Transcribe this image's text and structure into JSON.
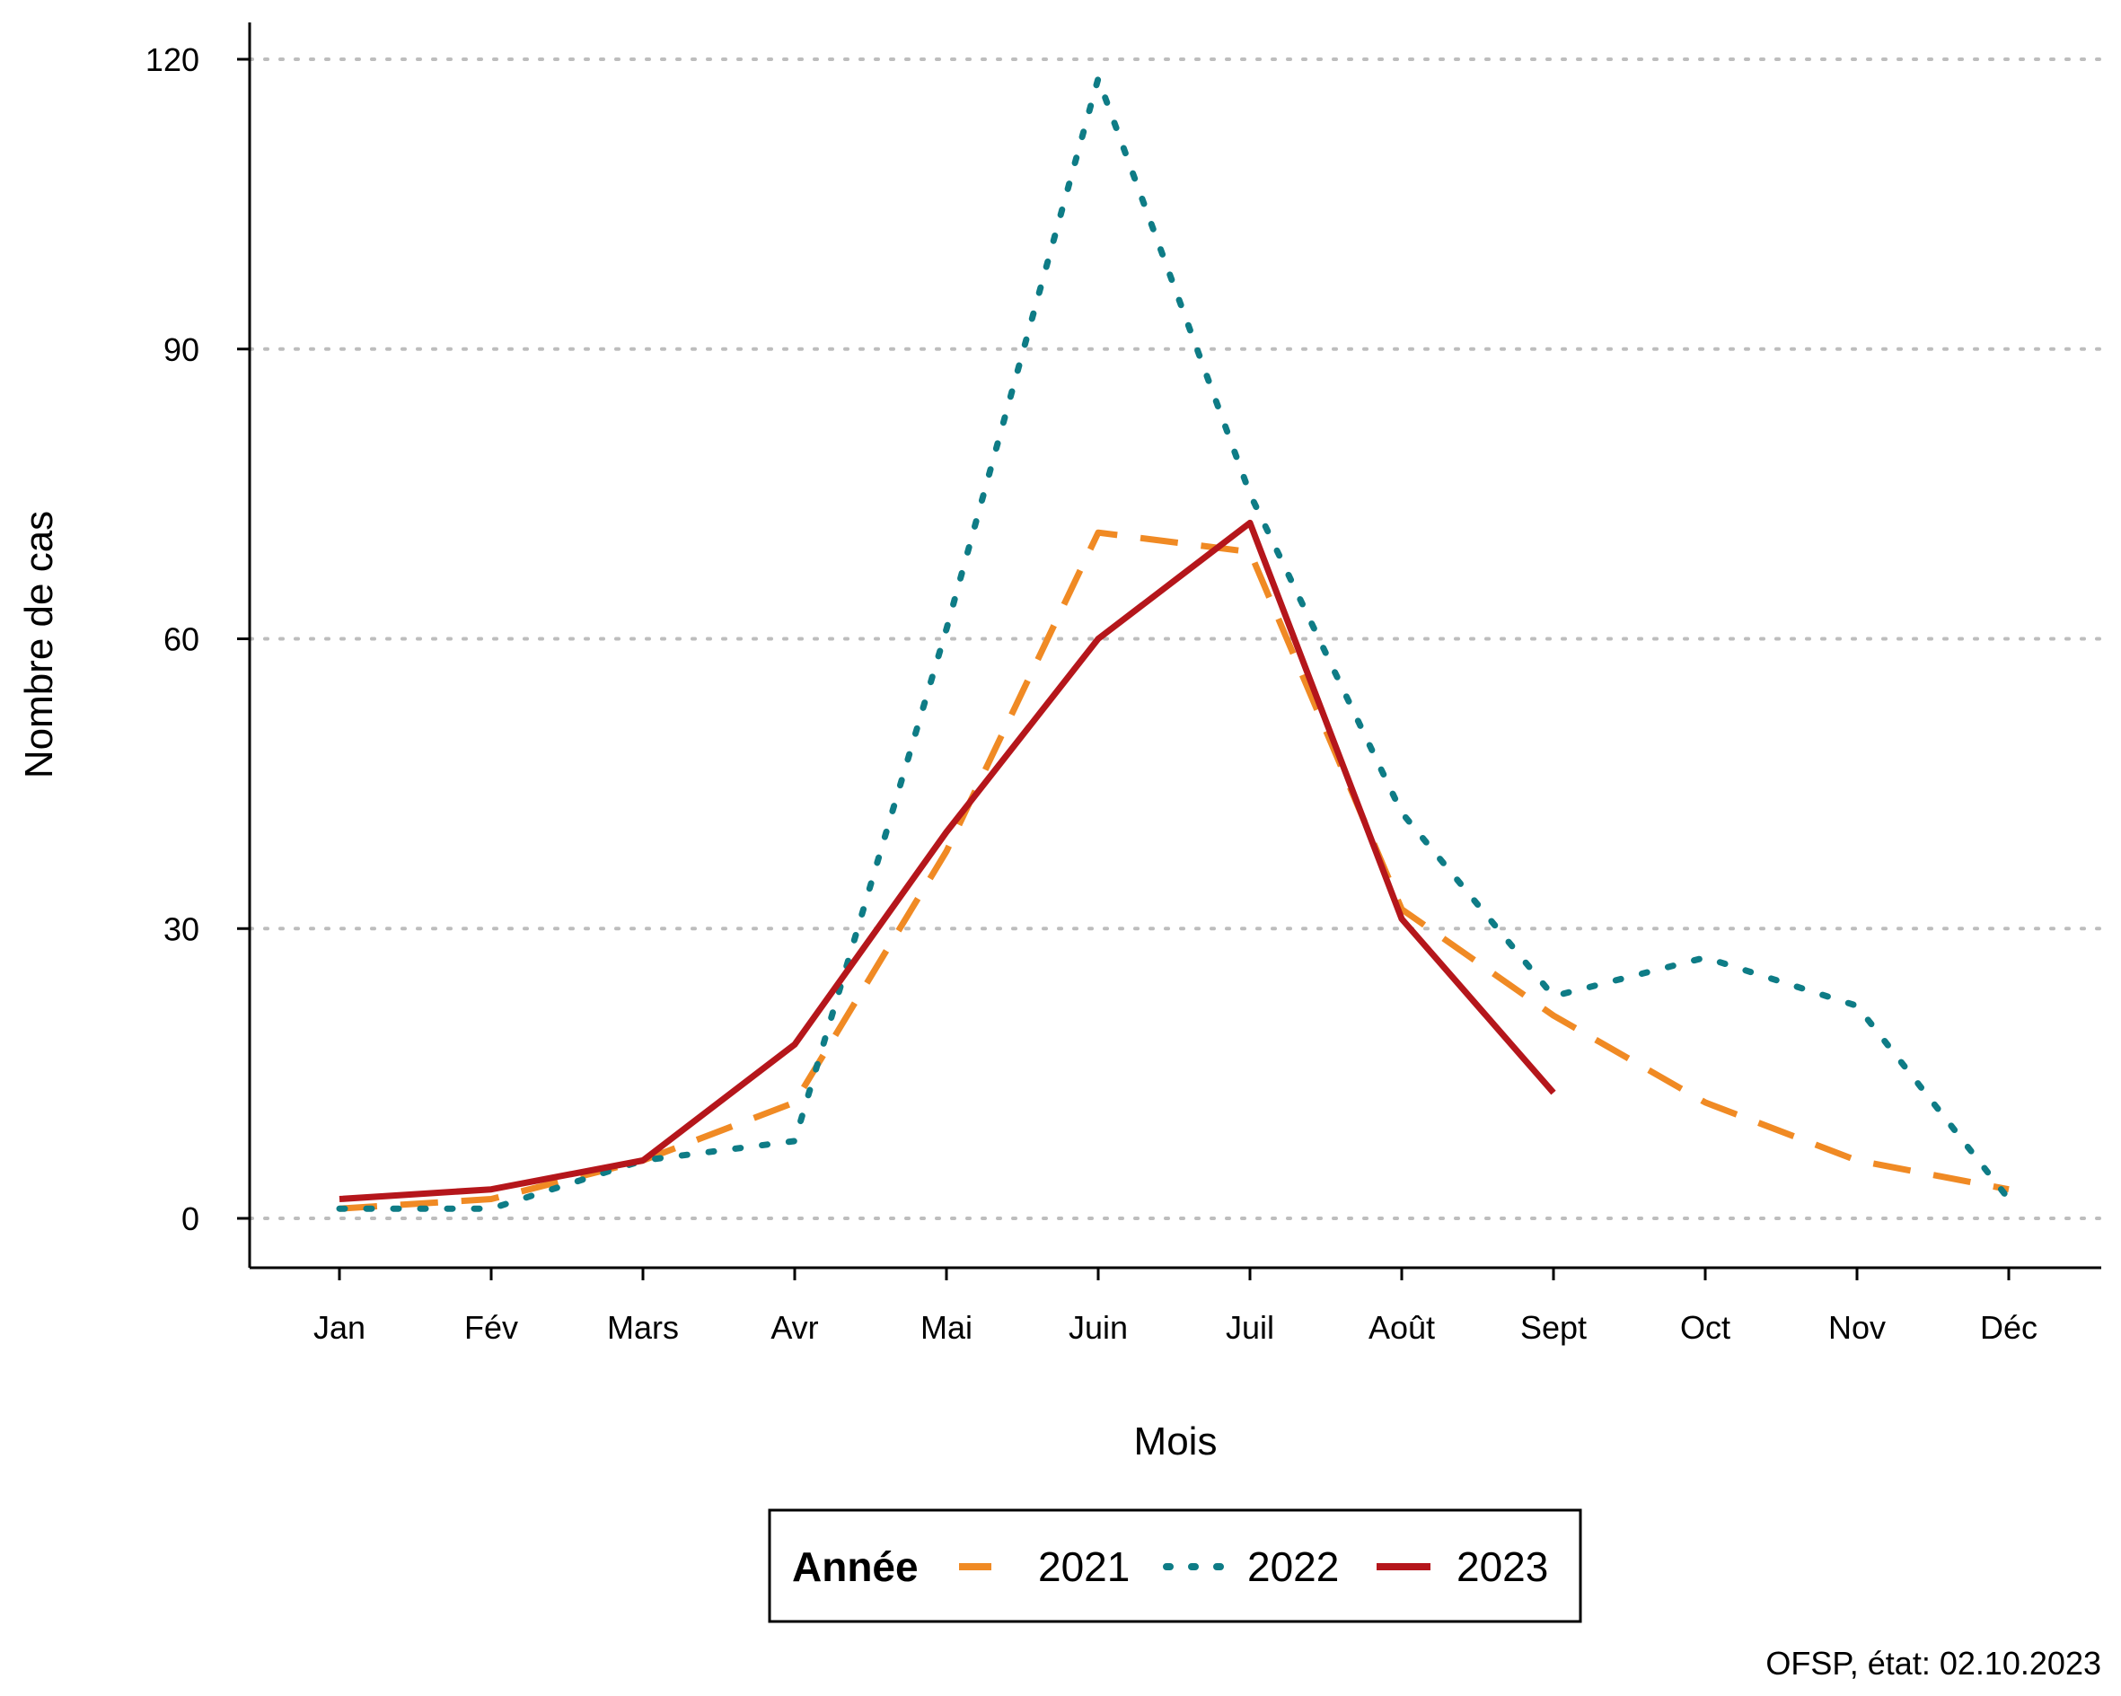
{
  "chart_data": {
    "type": "line",
    "xlabel": "Mois",
    "ylabel": "Nombre de cas",
    "categories": [
      "Jan",
      "Fév",
      "Mars",
      "Avr",
      "Mai",
      "Juin",
      "Juil",
      "Août",
      "Sept",
      "Oct",
      "Nov",
      "Déc"
    ],
    "ylim": [
      -5,
      124
    ],
    "yticks": [
      0,
      30,
      60,
      90,
      120
    ],
    "grid": "horizontal dotted",
    "legend": {
      "title": "Année",
      "position": "bottom"
    },
    "series": [
      {
        "name": "2021",
        "color": "#F08A24",
        "dash": "dashed",
        "values": [
          1,
          2,
          6,
          12,
          38,
          71,
          69,
          32,
          21,
          12,
          6,
          3
        ]
      },
      {
        "name": "2022",
        "color": "#0E7C86",
        "dash": "dotted",
        "values": [
          1,
          1,
          6,
          8,
          61,
          118,
          75,
          42,
          23,
          27,
          22,
          2
        ]
      },
      {
        "name": "2023",
        "color": "#B5161B",
        "dash": "solid",
        "values": [
          2,
          3,
          6,
          18,
          40,
          60,
          72,
          31,
          13,
          null,
          null,
          null
        ]
      }
    ],
    "caption": "OFSP, état: 02.10.2023"
  }
}
